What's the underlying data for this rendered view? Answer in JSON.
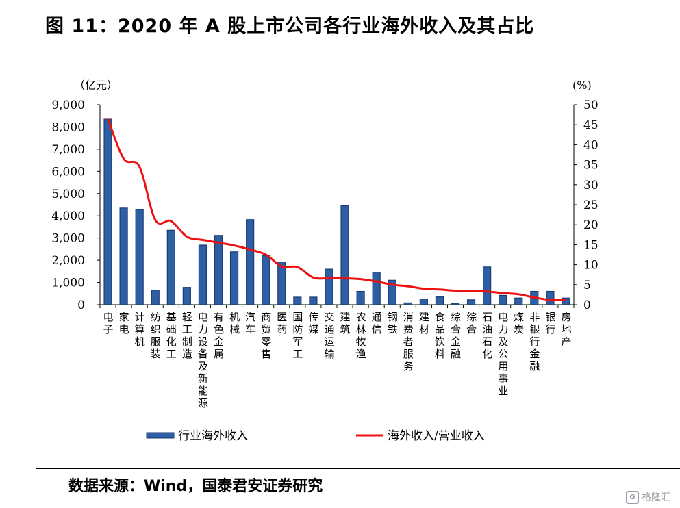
{
  "header": {
    "title": "图 11：2020 年 A 股上市公司各行业海外收入及其占比"
  },
  "footer": {
    "source": "数据来源：Wind，国泰君安证券研究",
    "watermark": "格隆汇"
  },
  "colors": {
    "bar_fill": "#2e5fa3",
    "bar_edge": "#1b3d73",
    "line": "#ee1111",
    "axis": "#000000"
  },
  "chart_data": {
    "type": "bar+line",
    "left_unit": "（亿元）",
    "right_unit": "(%)",
    "y_left": {
      "min": 0,
      "max": 9000,
      "ticks": [
        "0",
        "1,000",
        "2,000",
        "3,000",
        "4,000",
        "5,000",
        "6,000",
        "7,000",
        "8,000",
        "9,000"
      ]
    },
    "y_right": {
      "min": 0,
      "max": 50,
      "ticks": [
        "0",
        "5",
        "10",
        "15",
        "20",
        "25",
        "30",
        "35",
        "40",
        "45",
        "50"
      ]
    },
    "categories": [
      "电子",
      "家电",
      "计算机",
      "纺织服装",
      "基础化工",
      "轻工制造",
      "电力设备及新能源",
      "有色金属",
      "机械",
      "汽车",
      "商贸零售",
      "医药",
      "国防军工",
      "传媒",
      "交通运输",
      "建筑",
      "农林牧渔",
      "通信",
      "钢铁",
      "消费者服务",
      "建材",
      "食品饮料",
      "综合金融",
      "综合",
      "石油石化",
      "电力及公用事业",
      "煤炭",
      "非银行金融",
      "银行",
      "房地产"
    ],
    "series": [
      {
        "name": "行业海外收入",
        "kind": "bar",
        "axis": "left",
        "values": [
          8350,
          4350,
          4280,
          650,
          3350,
          780,
          2680,
          3120,
          2380,
          3830,
          2200,
          1920,
          340,
          340,
          1600,
          4450,
          600,
          1460,
          1100,
          80,
          260,
          350,
          60,
          220,
          1700,
          420,
          300,
          600,
          600,
          300
        ]
      },
      {
        "name": "海外收入/营业收入",
        "kind": "line",
        "axis": "right",
        "values": [
          46.5,
          36.5,
          34.5,
          21.2,
          20.9,
          17.0,
          16.2,
          15.5,
          14.8,
          13.8,
          12.5,
          9.6,
          9.4,
          6.8,
          6.6,
          6.6,
          6.4,
          5.8,
          5.0,
          4.6,
          4.0,
          3.8,
          3.5,
          3.4,
          3.3,
          2.9,
          2.6,
          1.8,
          1.2,
          1.2
        ]
      }
    ],
    "legend": {
      "placement": "bottom",
      "bar_label": "行业海外收入",
      "line_label": "海外收入/营业收入"
    }
  }
}
